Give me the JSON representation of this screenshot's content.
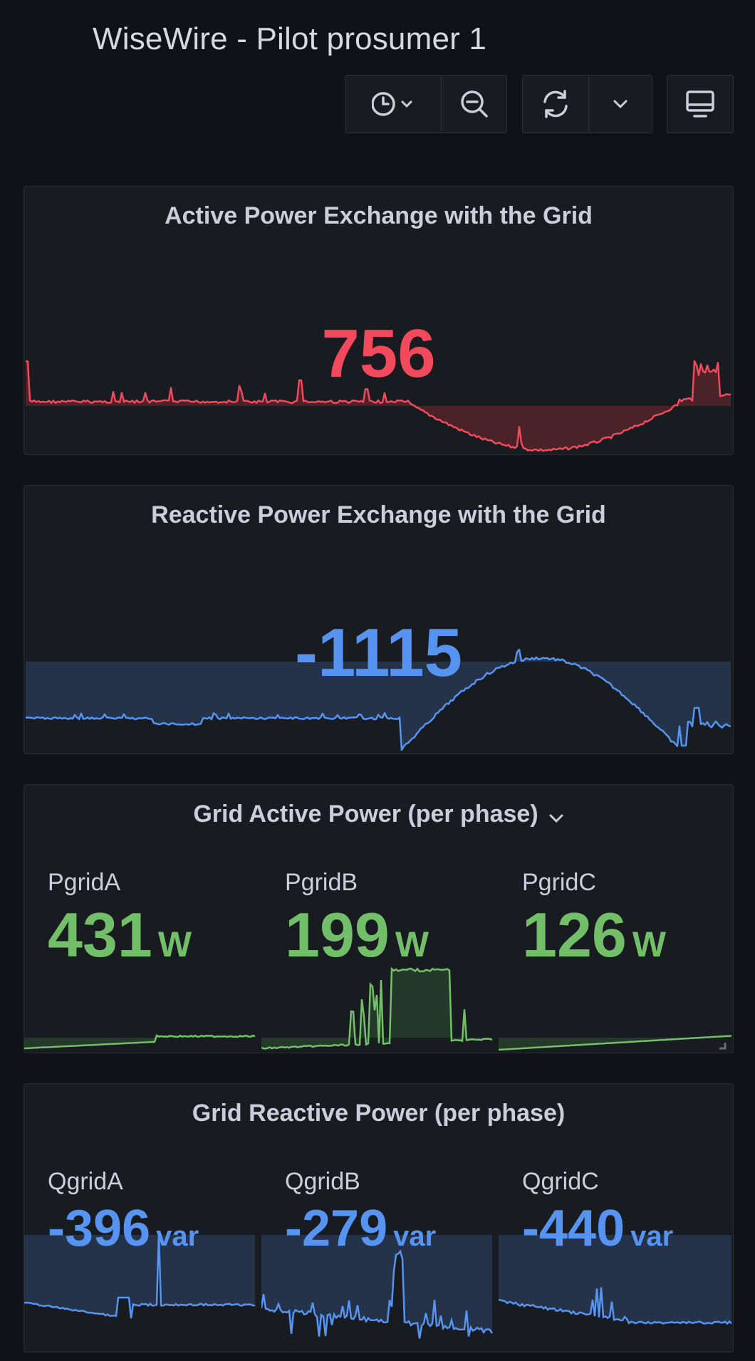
{
  "dashboard": {
    "title": "WiseWire - Pilot prosumer 1",
    "toolbar": {
      "time_picker_icon": "clock-icon",
      "zoom_out_icon": "zoom-out-icon",
      "refresh_icon": "refresh-icon",
      "refresh_interval_icon": "chevron-down-icon",
      "tv_mode_icon": "monitor-icon"
    }
  },
  "colors": {
    "red": "#f2495c",
    "blue": "#5794f2",
    "green": "#73bf69",
    "bg": "#111217",
    "panel": "#181b1f"
  },
  "panels": {
    "active": {
      "title": "Active Power Exchange with the Grid",
      "value": "756"
    },
    "reactive": {
      "title": "Reactive Power Exchange with the Grid",
      "value": "-1115"
    },
    "grid_active": {
      "title": "Grid Active Power (per phase)",
      "stats": [
        {
          "label": "PgridA",
          "value": "431",
          "unit": "W"
        },
        {
          "label": "PgridB",
          "value": "199",
          "unit": "W"
        },
        {
          "label": "PgridC",
          "value": "126",
          "unit": "W"
        }
      ]
    },
    "grid_reactive": {
      "title": "Grid Reactive Power (per phase)",
      "stats": [
        {
          "label": "QgridA",
          "value": "-396",
          "unit": "var"
        },
        {
          "label": "QgridB",
          "value": "-279",
          "unit": "var"
        },
        {
          "label": "QgridC",
          "value": "-440",
          "unit": "var"
        }
      ]
    }
  }
}
